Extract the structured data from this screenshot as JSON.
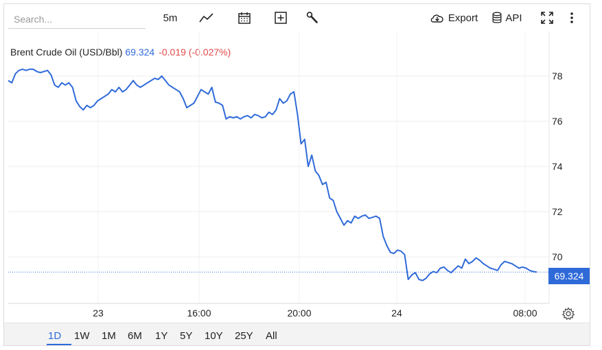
{
  "search": {
    "placeholder": "Search..."
  },
  "toolbar": {
    "interval_label": "5m",
    "export_label": "Export",
    "api_label": "API",
    "icons": [
      "line-chart-icon",
      "calendar-icon",
      "add-box-icon",
      "wrench-icon",
      "cloud-download-icon",
      "database-icon",
      "fullscreen-icon",
      "more-vert-icon"
    ]
  },
  "legend": {
    "name": "Brent Crude Oil (USD/Bbl)",
    "price": "69.324",
    "change": "-0.019 (-0.027%)"
  },
  "last_price_label": "69.324",
  "colors": {
    "line": "#2f6ad9",
    "negative": "#e04a4a",
    "gridline": "#ececec"
  },
  "range_buttons": [
    "1D",
    "1W",
    "1M",
    "6M",
    "1Y",
    "5Y",
    "10Y",
    "25Y",
    "All"
  ],
  "active_range": "1D",
  "chart_data": {
    "type": "line",
    "series": [
      {
        "values": [
          77.8,
          77.7,
          78.1,
          78.25,
          78.3,
          78.25,
          78.3,
          78.3,
          78.2,
          78.15,
          78.2,
          78.25,
          78.05,
          77.6,
          77.5,
          77.7,
          77.6,
          77.7,
          77.5,
          76.9,
          76.65,
          76.5,
          76.7,
          76.6,
          76.7,
          76.9,
          77.0,
          77.1,
          77.2,
          77.4,
          77.3,
          77.5,
          77.3,
          77.4,
          77.6,
          77.8,
          77.6,
          77.5,
          77.6,
          77.7,
          77.8,
          77.9,
          77.85,
          78.0,
          77.8,
          77.6,
          77.5,
          77.4,
          77.3,
          77.0,
          76.6,
          76.7,
          76.8,
          77.1,
          77.4,
          77.3,
          77.2,
          77.5,
          76.85,
          76.8,
          76.7,
          76.1,
          76.2,
          76.15,
          76.2,
          76.1,
          76.2,
          76.25,
          76.15,
          76.3,
          76.25,
          76.15,
          76.2,
          76.4,
          76.3,
          76.5,
          77.0,
          76.8,
          76.9,
          77.2,
          77.3,
          76.3,
          75.0,
          75.2,
          74.0,
          74.5,
          73.8,
          73.6,
          73.2,
          73.3,
          72.6,
          72.5,
          72.0,
          71.7,
          71.4,
          71.6,
          71.5,
          71.8,
          71.7,
          71.8,
          71.85,
          71.7,
          71.75,
          71.8,
          71.7,
          70.9,
          70.5,
          70.2,
          70.15,
          70.3,
          70.25,
          70.1,
          69.0,
          69.2,
          69.3,
          69.0,
          68.95,
          69.05,
          69.25,
          69.35,
          69.3,
          69.5,
          69.55,
          69.4,
          69.3,
          69.45,
          69.6,
          69.5,
          69.9,
          69.7,
          69.8,
          69.95,
          69.85,
          69.7,
          69.6,
          69.5,
          69.45,
          69.4,
          69.65,
          69.8,
          69.75,
          69.7,
          69.6,
          69.5,
          69.55,
          69.5,
          69.4,
          69.35,
          69.324
        ]
      }
    ],
    "x_tick_labels": [
      "23",
      "16:00",
      "20:00",
      "24",
      "08:00"
    ],
    "y_tick_labels": [
      "70",
      "72",
      "74",
      "76",
      "78"
    ],
    "ylim": [
      68,
      79.5
    ],
    "last_value": 69.324,
    "grid": true
  }
}
